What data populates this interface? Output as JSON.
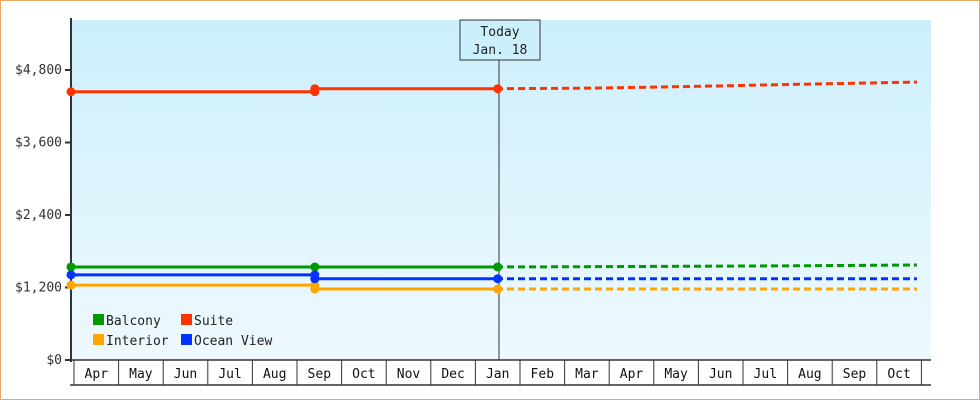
{
  "chart_data": {
    "type": "line",
    "title": "",
    "xlabel": "",
    "ylabel": "",
    "ylim": [
      0,
      5400
    ],
    "y_ticks": [
      {
        "value": 0,
        "label": "$0"
      },
      {
        "value": 1200,
        "label": "$1,200"
      },
      {
        "value": 2400,
        "label": "$2,400"
      },
      {
        "value": 3600,
        "label": "$3,600"
      },
      {
        "value": 4800,
        "label": "$4,800"
      }
    ],
    "categories": [
      "Apr",
      "May",
      "Jun",
      "Jul",
      "Aug",
      "Sep",
      "Oct",
      "Nov",
      "Dec",
      "Jan",
      "Feb",
      "Mar",
      "Apr",
      "May",
      "Jun",
      "Jul",
      "Aug",
      "Sep",
      "Oct"
    ],
    "today_marker": {
      "line1": "Today",
      "line2": "Jan. 18",
      "category_index": 9
    },
    "grid": false,
    "legend_position": "bottom-left inside",
    "series": [
      {
        "name": "Balcony",
        "color": "#009900",
        "actual": [
          {
            "x": 0,
            "y": 1540
          },
          {
            "x": 5.4,
            "y": 1540
          },
          {
            "x": 9.5,
            "y": 1540
          }
        ],
        "projected": [
          {
            "x": 9.5,
            "y": 1540
          },
          {
            "x": 11.8,
            "y": 1545
          },
          {
            "x": 16.4,
            "y": 1560
          },
          {
            "x": 18.9,
            "y": 1573
          }
        ]
      },
      {
        "name": "Suite",
        "color": "#ff3300",
        "actual": [
          {
            "x": 0,
            "y": 4440
          },
          {
            "x": 5.4,
            "y": 4440
          },
          {
            "x": 5.4,
            "y": 4490
          },
          {
            "x": 9.5,
            "y": 4490
          }
        ],
        "projected": [
          {
            "x": 9.5,
            "y": 4490
          },
          {
            "x": 11.6,
            "y": 4500
          },
          {
            "x": 14.0,
            "y": 4530
          },
          {
            "x": 16.0,
            "y": 4560
          },
          {
            "x": 18.9,
            "y": 4600
          }
        ]
      },
      {
        "name": "Interior",
        "color": "#ffa500",
        "actual": [
          {
            "x": 0,
            "y": 1240
          },
          {
            "x": 5.4,
            "y": 1240
          },
          {
            "x": 5.4,
            "y": 1175
          },
          {
            "x": 9.5,
            "y": 1175
          }
        ],
        "projected": [
          {
            "x": 9.5,
            "y": 1175
          },
          {
            "x": 18.9,
            "y": 1175
          }
        ]
      },
      {
        "name": "Ocean View",
        "color": "#0033ff",
        "actual": [
          {
            "x": 0,
            "y": 1410
          },
          {
            "x": 5.4,
            "y": 1410
          },
          {
            "x": 5.4,
            "y": 1345
          },
          {
            "x": 9.5,
            "y": 1345
          }
        ],
        "projected": [
          {
            "x": 9.5,
            "y": 1345
          },
          {
            "x": 18.9,
            "y": 1345
          }
        ]
      }
    ]
  },
  "legend": {
    "items": [
      {
        "label": "Balcony",
        "color": "#009900"
      },
      {
        "label": "Suite",
        "color": "#ff3300"
      },
      {
        "label": "Interior",
        "color": "#ffa500"
      },
      {
        "label": "Ocean View",
        "color": "#0033ff"
      }
    ]
  },
  "colors": {
    "frame": "#e8a968",
    "plot_top": "#cceffc",
    "plot_bottom": "#eef9fe",
    "axis": "#333333"
  }
}
